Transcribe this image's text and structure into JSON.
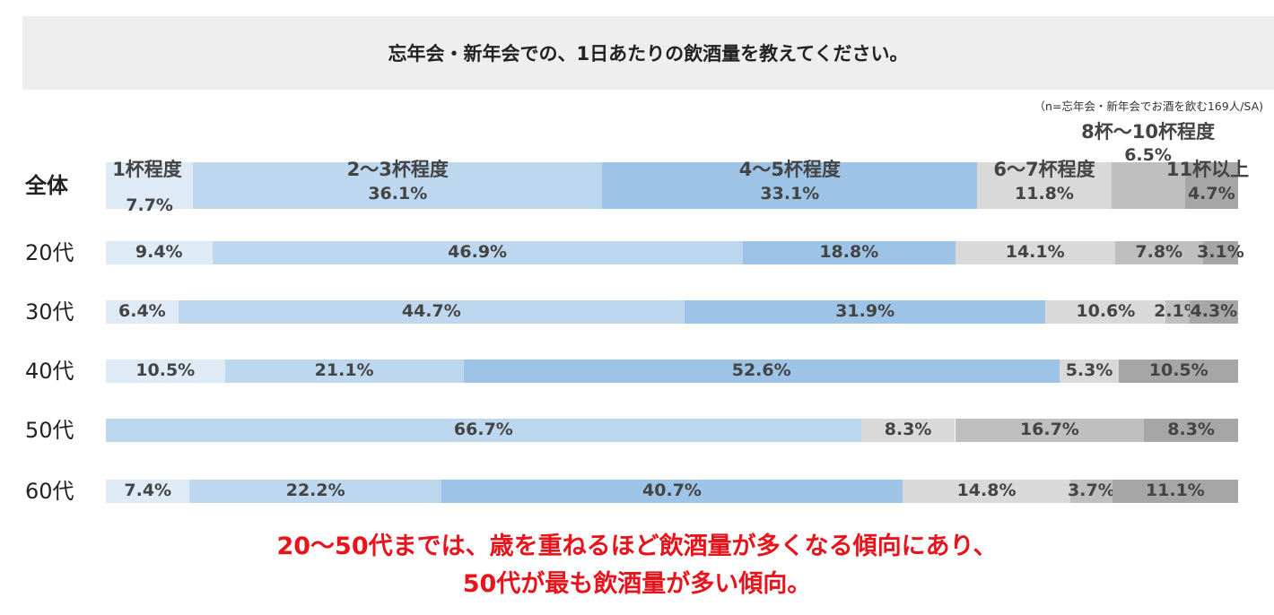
{
  "chart_data": {
    "type": "bar",
    "orientation": "horizontal-stacked-100",
    "title": "忘年会・新年会での、1日あたりの飲酒量を教えてください。",
    "note": "（n=忘年会・新年会でお酒を飲む169人/SA)",
    "categories": [
      "1杯程度",
      "2～3杯程度",
      "4～5杯程度",
      "6～7杯程度",
      "8杯～10杯程度",
      "11杯以上"
    ],
    "colors": [
      "#deeaf6",
      "#bdd7ee",
      "#9dc3e6",
      "#d9d9d9",
      "#bfbfbf",
      "#a6a6a6"
    ],
    "rows": [
      {
        "label": "全体",
        "values": [
          7.7,
          36.1,
          33.1,
          11.8,
          6.5,
          4.7
        ],
        "labels": [
          "7.7%",
          "36.1%",
          "33.1%",
          "11.8%",
          "6.5%",
          "4.7%"
        ]
      },
      {
        "label": "20代",
        "values": [
          9.4,
          46.9,
          18.8,
          14.1,
          7.8,
          3.1
        ],
        "labels": [
          "9.4%",
          "46.9%",
          "18.8%",
          "14.1%",
          "7.8%",
          "3.1%"
        ]
      },
      {
        "label": "30代",
        "values": [
          6.4,
          44.7,
          31.9,
          10.6,
          2.1,
          4.3
        ],
        "labels": [
          "6.4%",
          "44.7%",
          "31.9%",
          "10.6%",
          "2.1%",
          "4.3%"
        ]
      },
      {
        "label": "40代",
        "values": [
          10.5,
          21.1,
          52.6,
          5.3,
          0,
          10.5
        ],
        "labels": [
          "10.5%",
          "21.1%",
          "52.6%",
          "5.3%",
          "",
          "10.5%"
        ]
      },
      {
        "label": "50代",
        "values": [
          0,
          66.7,
          0,
          8.3,
          16.7,
          8.3
        ],
        "labels": [
          "",
          "66.7%",
          "",
          "8.3%",
          "16.7%",
          "8.3%"
        ]
      },
      {
        "label": "60代",
        "values": [
          7.4,
          22.2,
          40.7,
          14.8,
          3.7,
          11.1
        ],
        "labels": [
          "7.4%",
          "22.2%",
          "40.7%",
          "14.8%",
          "3.7%",
          "11.1%"
        ]
      }
    ],
    "conclusion": [
      "20～50代までは、歳を重ねるほど飲酒量が多くなる傾向にあり、",
      "50代が最も飲酒量が多い傾向。"
    ]
  }
}
